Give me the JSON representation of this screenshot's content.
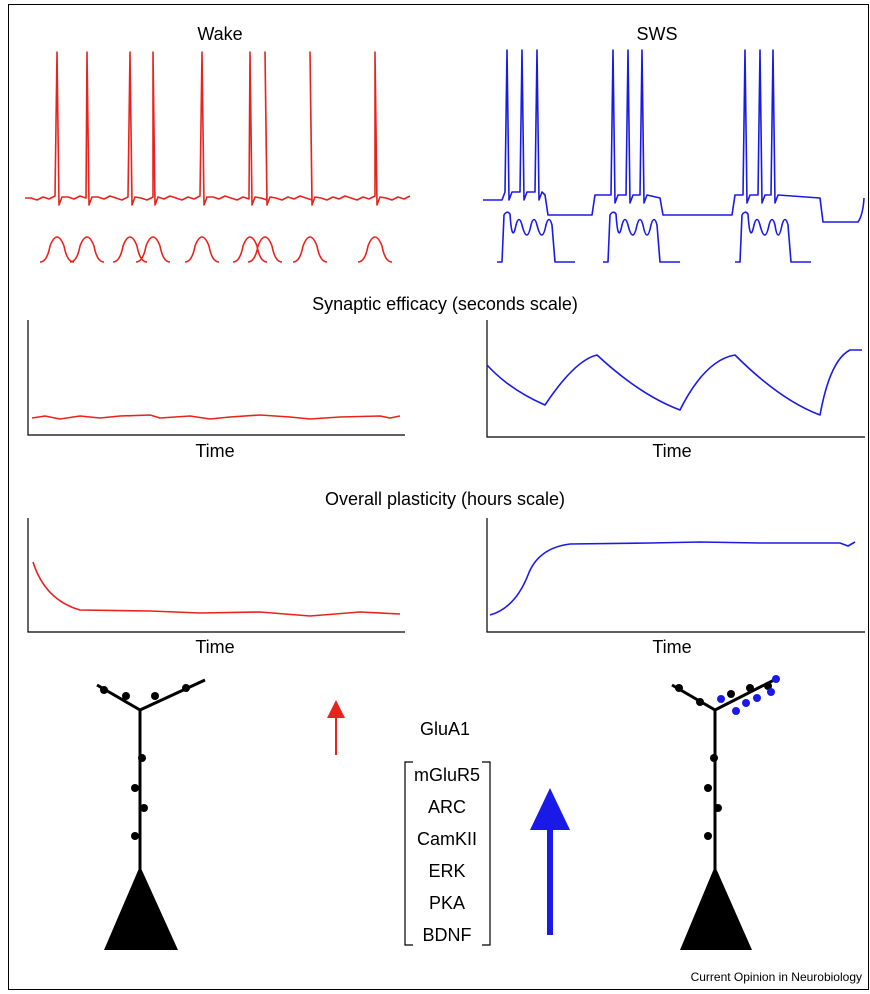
{
  "wake_label": "Wake",
  "sws_label": "SWS",
  "sections": [
    {
      "title": "Synaptic efficacy (seconds scale)",
      "x_labels": [
        "Time",
        "Time"
      ]
    },
    {
      "title": "Overall plasticity (hours scale)",
      "x_labels": [
        "Time",
        "Time"
      ]
    }
  ],
  "small_arrow_label": "GluA1",
  "large_arrow_labels": [
    "mGluR5",
    "ARC",
    "CamKII",
    "ERK",
    "PKA",
    "BDNF"
  ],
  "footer": "Current Opinion in Neurobiology"
}
